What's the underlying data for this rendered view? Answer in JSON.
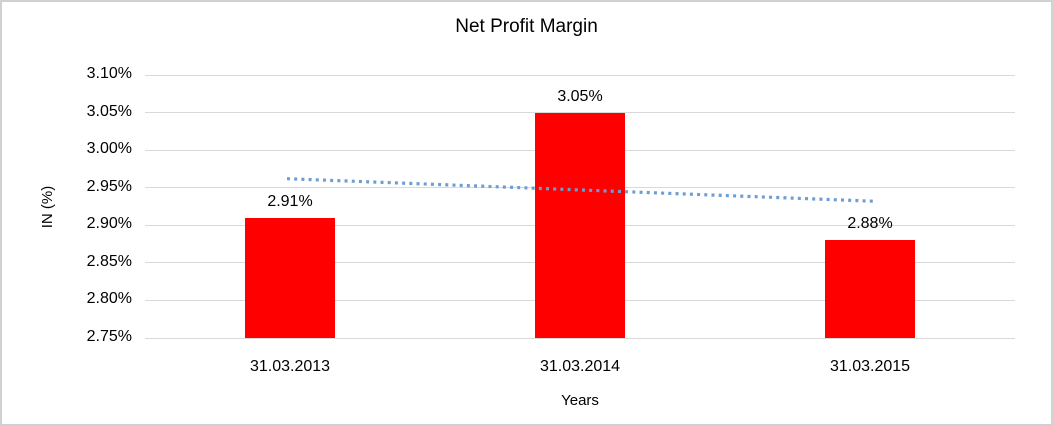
{
  "chart_data": {
    "type": "bar",
    "title": "Net Profit Margin",
    "xlabel": "Years",
    "ylabel": "IN (%)",
    "categories": [
      "31.03.2013",
      "31.03.2014",
      "31.03.2015"
    ],
    "values": [
      2.91,
      3.05,
      2.88
    ],
    "data_labels": [
      "2.91%",
      "3.05%",
      "2.88%"
    ],
    "ylim": [
      2.75,
      3.1
    ],
    "ytick_step": 0.05,
    "ytick_labels": [
      "2.75%",
      "2.80%",
      "2.85%",
      "2.90%",
      "2.95%",
      "3.00%",
      "3.05%",
      "3.10%"
    ],
    "grid": true,
    "legend": "none",
    "bar_color": "#ff0000",
    "gridline_color": "#d9d9d9",
    "trendline": {
      "type": "linear",
      "style": "dotted",
      "color": "#6e9dd3",
      "start_value": 2.962,
      "end_value": 2.932
    }
  }
}
